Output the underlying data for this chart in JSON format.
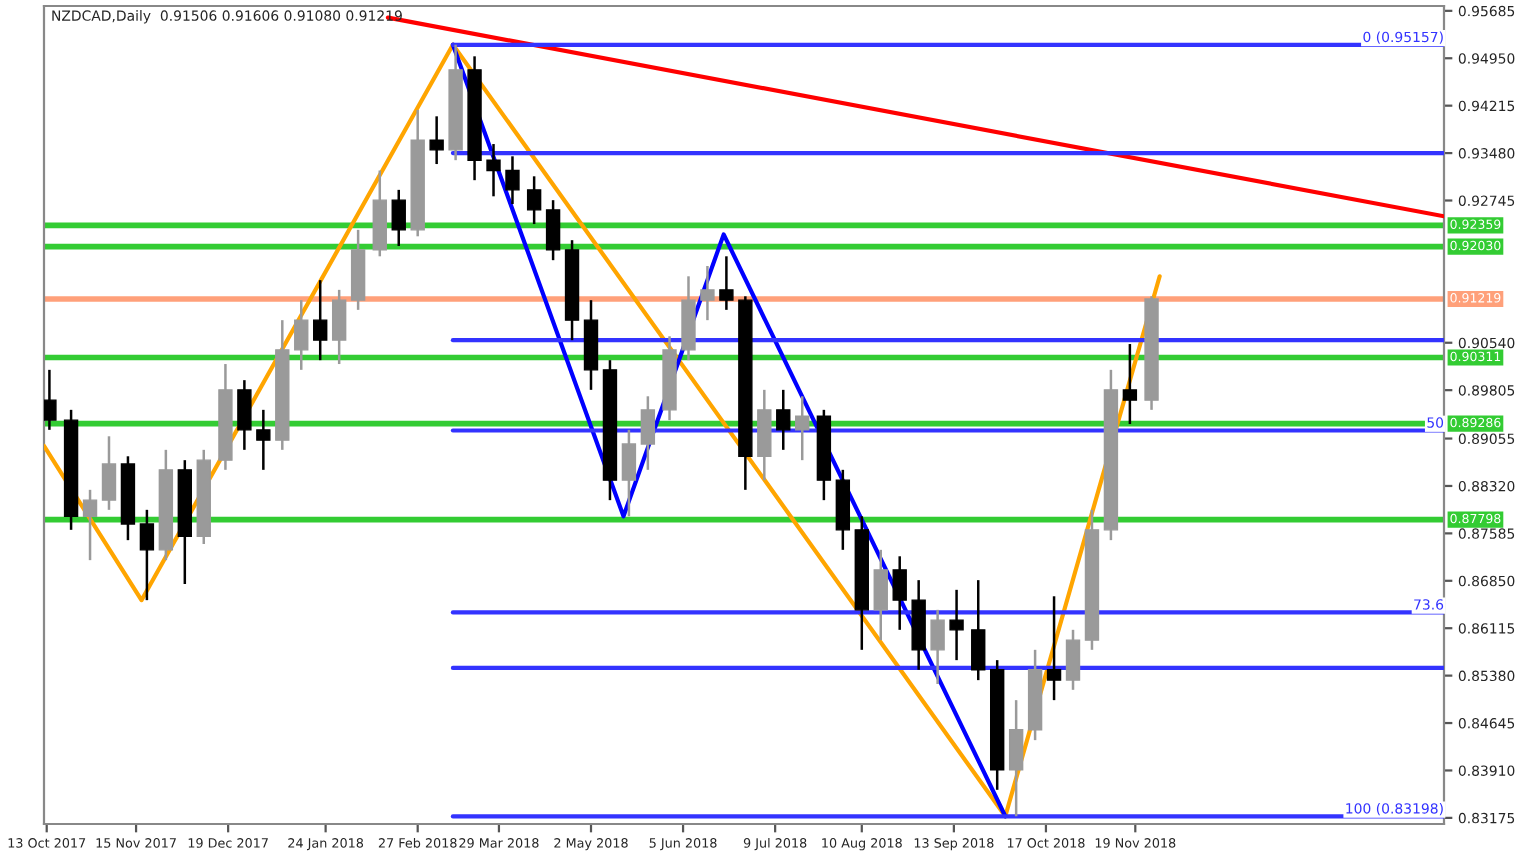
{
  "chart_data": {
    "type": "candlestick",
    "title": "NZDCAD,Daily  0.91506 0.91606 0.91080 0.91219",
    "x": [
      "2017-10-14",
      "2017-10-22",
      "2017-10-29",
      "2017-11-05",
      "2017-11-12",
      "2017-11-19",
      "2017-11-26",
      "2017-12-03",
      "2017-12-10",
      "2017-12-18",
      "2017-12-25",
      "2018-01-01",
      "2018-01-08",
      "2018-01-15",
      "2018-01-22",
      "2018-01-29",
      "2018-02-05",
      "2018-02-13",
      "2018-02-20",
      "2018-02-27",
      "2018-03-06",
      "2018-03-13",
      "2018-03-20",
      "2018-03-27",
      "2018-04-03",
      "2018-04-11",
      "2018-04-18",
      "2018-04-25",
      "2018-05-02",
      "2018-05-09",
      "2018-05-16",
      "2018-05-23",
      "2018-05-31",
      "2018-06-07",
      "2018-06-14",
      "2018-06-21",
      "2018-06-28",
      "2018-07-05",
      "2018-07-12",
      "2018-07-19",
      "2018-07-27",
      "2018-08-03",
      "2018-08-10",
      "2018-08-17",
      "2018-08-24",
      "2018-08-31",
      "2018-09-07",
      "2018-09-14",
      "2018-09-22",
      "2018-09-29",
      "2018-10-06",
      "2018-10-13",
      "2018-10-20",
      "2018-10-27",
      "2018-11-03",
      "2018-11-10",
      "2018-11-17",
      "2018-11-25"
    ],
    "ohlc": [
      [
        0.8965,
        0.9012,
        0.8919,
        0.8934
      ],
      [
        0.8934,
        0.895,
        0.8764,
        0.8785
      ],
      [
        0.8785,
        0.8826,
        0.8717,
        0.881
      ],
      [
        0.881,
        0.8909,
        0.8795,
        0.8866
      ],
      [
        0.8866,
        0.8878,
        0.8748,
        0.8773
      ],
      [
        0.8773,
        0.8795,
        0.8655,
        0.8733
      ],
      [
        0.8733,
        0.8888,
        0.8717,
        0.8857
      ],
      [
        0.8857,
        0.8872,
        0.868,
        0.8754
      ],
      [
        0.8754,
        0.8888,
        0.8742,
        0.8872
      ],
      [
        0.8872,
        0.9021,
        0.8857,
        0.8981
      ],
      [
        0.8981,
        0.8996,
        0.8888,
        0.8919
      ],
      [
        0.8919,
        0.895,
        0.8857,
        0.8903
      ],
      [
        0.8903,
        0.9089,
        0.8888,
        0.9043
      ],
      [
        0.9043,
        0.912,
        0.9012,
        0.9089
      ],
      [
        0.9089,
        0.9151,
        0.9027,
        0.9058
      ],
      [
        0.9058,
        0.9136,
        0.9021,
        0.912
      ],
      [
        0.912,
        0.9229,
        0.9105,
        0.9198
      ],
      [
        0.9198,
        0.9321,
        0.9188,
        0.9275
      ],
      [
        0.9275,
        0.9291,
        0.9204,
        0.9229
      ],
      [
        0.9229,
        0.9415,
        0.9219,
        0.9368
      ],
      [
        0.9368,
        0.9405,
        0.9331,
        0.9353
      ],
      [
        0.9353,
        0.9516,
        0.9337,
        0.9477
      ],
      [
        0.9477,
        0.9498,
        0.9306,
        0.9337
      ],
      [
        0.9337,
        0.9362,
        0.9281,
        0.9321
      ],
      [
        0.9321,
        0.9343,
        0.9269,
        0.9291
      ],
      [
        0.9291,
        0.9312,
        0.9238,
        0.926
      ],
      [
        0.926,
        0.9275,
        0.9182,
        0.9198
      ],
      [
        0.9198,
        0.9213,
        0.9058,
        0.9089
      ],
      [
        0.9089,
        0.912,
        0.8981,
        0.9012
      ],
      [
        0.9012,
        0.9027,
        0.881,
        0.8841
      ],
      [
        0.8841,
        0.8919,
        0.8785,
        0.8897
      ],
      [
        0.8897,
        0.8971,
        0.8857,
        0.895
      ],
      [
        0.895,
        0.9064,
        0.8934,
        0.9043
      ],
      [
        0.9043,
        0.9157,
        0.9027,
        0.912
      ],
      [
        0.912,
        0.9173,
        0.9089,
        0.9136
      ],
      [
        0.9136,
        0.9188,
        0.9105,
        0.912
      ],
      [
        0.912,
        0.9126,
        0.8826,
        0.8878
      ],
      [
        0.8878,
        0.8981,
        0.8841,
        0.895
      ],
      [
        0.895,
        0.8981,
        0.8888,
        0.8919
      ],
      [
        0.8919,
        0.8971,
        0.8872,
        0.894
      ],
      [
        0.894,
        0.895,
        0.881,
        0.8841
      ],
      [
        0.8841,
        0.8857,
        0.8733,
        0.8764
      ],
      [
        0.8764,
        0.8785,
        0.8578,
        0.864
      ],
      [
        0.864,
        0.8733,
        0.8593,
        0.8702
      ],
      [
        0.8702,
        0.8723,
        0.8609,
        0.8655
      ],
      [
        0.8655,
        0.8686,
        0.8547,
        0.8578
      ],
      [
        0.8578,
        0.864,
        0.8525,
        0.8624
      ],
      [
        0.8624,
        0.8671,
        0.8562,
        0.8609
      ],
      [
        0.8609,
        0.8686,
        0.8531,
        0.8547
      ],
      [
        0.8547,
        0.8562,
        0.8361,
        0.8392
      ],
      [
        0.8392,
        0.85,
        0.832,
        0.8454
      ],
      [
        0.8454,
        0.8578,
        0.8438,
        0.8547
      ],
      [
        0.8547,
        0.8661,
        0.85,
        0.8531
      ],
      [
        0.8531,
        0.8609,
        0.8516,
        0.8593
      ],
      [
        0.8593,
        0.8795,
        0.8578,
        0.8764
      ],
      [
        0.8764,
        0.9012,
        0.8748,
        0.8981
      ],
      [
        0.8981,
        0.9052,
        0.8928,
        0.8965
      ],
      [
        0.8965,
        0.9126,
        0.895,
        0.91219
      ]
    ],
    "series": [
      {
        "type": "line",
        "color": "#ffa500",
        "x": [
          "2017-10-12",
          "2017-11-17",
          "2018-03-12",
          "2018-10-02",
          "2018-11-28"
        ],
        "values": [
          0.8894,
          0.8655,
          0.9516,
          0.832,
          0.9157
        ]
      },
      {
        "type": "line",
        "color": "#0000ff",
        "x": [
          "2018-03-12",
          "2018-05-14",
          "2018-06-20",
          "2018-10-02"
        ],
        "values": [
          0.9516,
          0.8785,
          0.9222,
          0.832
        ]
      },
      {
        "type": "line",
        "color": "#ff0000",
        "x": [
          "2018-02-16",
          "2019-03-13"
        ],
        "values": [
          0.9558,
          0.925
        ]
      },
      {
        "type": "line",
        "color": "#3333ff",
        "name": "0 (0.95157)",
        "x": [
          "2018-03-12",
          "2019-03-13"
        ],
        "values": [
          0.95157,
          0.95157
        ]
      },
      {
        "type": "line",
        "color": "#3333ff",
        "x": [
          "2018-03-12",
          "2019-03-13"
        ],
        "values": [
          0.9348,
          0.9348
        ]
      },
      {
        "type": "line",
        "color": "#3333ff",
        "x": [
          "2018-03-12",
          "2019-03-13"
        ],
        "values": [
          0.9058,
          0.9058
        ]
      },
      {
        "type": "line",
        "color": "#3333ff",
        "name": "50",
        "x": [
          "2018-03-12",
          "2019-03-13"
        ],
        "values": [
          0.8918,
          0.8918
        ]
      },
      {
        "type": "line",
        "color": "#3333ff",
        "name": "73.6",
        "x": [
          "2018-03-12",
          "2019-03-13"
        ],
        "values": [
          0.8636,
          0.8636
        ]
      },
      {
        "type": "line",
        "color": "#3333ff",
        "x": [
          "2018-03-12",
          "2019-03-13"
        ],
        "values": [
          0.855,
          0.855
        ]
      },
      {
        "type": "line",
        "color": "#3333ff",
        "name": "100 (0.83198)",
        "x": [
          "2018-03-12",
          "2019-03-13"
        ],
        "values": [
          0.83198,
          0.83198
        ]
      }
    ],
    "ref_lines": [
      {
        "axis": "y",
        "value": 0.92359,
        "label": "0.92359",
        "color": "#33cc33"
      },
      {
        "axis": "y",
        "value": 0.9203,
        "label": "0.92030",
        "color": "#33cc33"
      },
      {
        "axis": "y",
        "value": 0.90311,
        "label": "0.90311",
        "color": "#33cc33"
      },
      {
        "axis": "y",
        "value": 0.89286,
        "label": "0.89286",
        "color": "#33cc33"
      },
      {
        "axis": "y",
        "value": 0.87798,
        "label": "0.87798",
        "color": "#33cc33"
      },
      {
        "axis": "y",
        "value": 0.91219,
        "label": "0.91219",
        "color": "#ffa07a"
      }
    ],
    "xlim": [
      "2017-10-12",
      "2019-03-13"
    ],
    "xticks": [
      {
        "value": "2017-10-13",
        "label": "13 Oct 2017"
      },
      {
        "value": "2017-11-15",
        "label": "15 Nov 2017"
      },
      {
        "value": "2017-12-19",
        "label": "19 Dec 2017"
      },
      {
        "value": "2018-01-24",
        "label": "24 Jan 2018"
      },
      {
        "value": "2018-02-27",
        "label": "27 Feb 2018"
      },
      {
        "value": "2018-03-29",
        "label": "29 Mar 2018"
      },
      {
        "value": "2018-05-02",
        "label": "2 May 2018"
      },
      {
        "value": "2018-06-05",
        "label": "5 Jun 2018"
      },
      {
        "value": "2018-07-09",
        "label": "9 Jul 2018"
      },
      {
        "value": "2018-08-10",
        "label": "10 Aug 2018"
      },
      {
        "value": "2018-09-13",
        "label": "13 Sep 2018"
      },
      {
        "value": "2018-10-17",
        "label": "17 Oct 2018"
      },
      {
        "value": "2018-11-19",
        "label": "19 Nov 2018"
      }
    ],
    "ylim": [
      0.8308,
      0.9576
    ],
    "yticks": [
      {
        "value": 0.95685,
        "label": "0.95685"
      },
      {
        "value": 0.9495,
        "label": "0.94950"
      },
      {
        "value": 0.94215,
        "label": "0.94215"
      },
      {
        "value": 0.9348,
        "label": "0.93480"
      },
      {
        "value": 0.92745,
        "label": "0.92745"
      },
      {
        "value": 0.9054,
        "label": "0.90540"
      },
      {
        "value": 0.89805,
        "label": "0.89805"
      },
      {
        "value": 0.89055,
        "label": "0.89055"
      },
      {
        "value": 0.8832,
        "label": "0.88320"
      },
      {
        "value": 0.87585,
        "label": "0.87585"
      },
      {
        "value": 0.8685,
        "label": "0.86850"
      },
      {
        "value": 0.86115,
        "label": "0.86115"
      },
      {
        "value": 0.8538,
        "label": "0.85380"
      },
      {
        "value": 0.84645,
        "label": "0.84645"
      },
      {
        "value": 0.8391,
        "label": "0.83910"
      },
      {
        "value": 0.83175,
        "label": "0.83175"
      }
    ],
    "grid": false,
    "legend": false
  }
}
